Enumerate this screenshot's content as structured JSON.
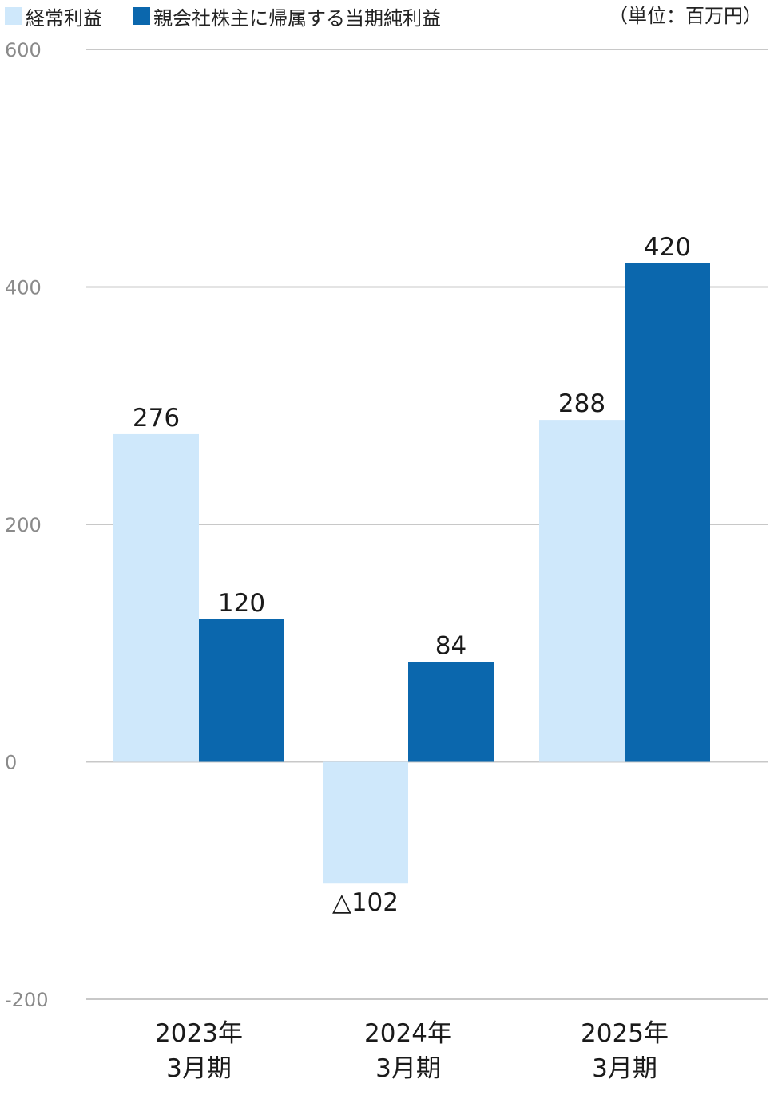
{
  "legend": {
    "series1_label": "経常利益",
    "series2_label": "親会社株主に帰属する当期純利益"
  },
  "unit_label": "（単位：百万円）",
  "colors": {
    "series1": "#cfe8fb",
    "series2": "#0b67ad",
    "grid": "#c8c8c8",
    "tick_text": "#8a8a8a",
    "label_text": "#1a1a1a"
  },
  "chart_data": {
    "type": "bar",
    "categories": [
      [
        "2023年",
        "3月期"
      ],
      [
        "2024年",
        "3月期"
      ],
      [
        "2025年",
        "3月期"
      ]
    ],
    "series": [
      {
        "name": "経常利益",
        "values": [
          276,
          -102,
          288
        ],
        "labels": [
          "276",
          "△102",
          "288"
        ]
      },
      {
        "name": "親会社株主に帰属する当期純利益",
        "values": [
          120,
          84,
          420
        ],
        "labels": [
          "120",
          "84",
          "420"
        ]
      }
    ],
    "ylim": [
      -200,
      600
    ],
    "yticks": [
      600,
      400,
      200,
      0,
      -200
    ],
    "grid": true,
    "legend_position": "top-left"
  }
}
